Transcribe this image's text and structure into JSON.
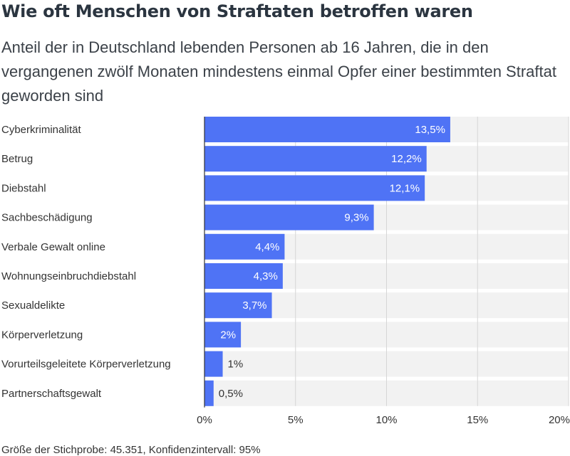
{
  "title": "Wie oft Menschen von Straftaten betroffen waren",
  "subtitle": "Anteil der in Deutschland lebenden Personen ab 16 Jahren, die in den vergangenen zwölf Monaten mindestens einmal Opfer einer bestimmten Straftat geworden sind",
  "footnote": "Größe der Stichprobe: 45.351, Konfidenzintervall: 95%",
  "colors": {
    "bar": "#4f73f5",
    "row_bg": "#f2f2f2",
    "grid": "#d6d6d6",
    "axis": "#333333",
    "inside_label": "#ffffff",
    "outside_label": "#333333"
  },
  "chart_data": {
    "type": "bar",
    "orientation": "horizontal",
    "categories": [
      "Cyberkriminalität",
      "Betrug",
      "Diebstahl",
      "Sachbeschädigung",
      "Verbale Gewalt online",
      "Wohnungseinbruchdiebstahl",
      "Sexualdelikte",
      "Körperverletzung",
      "Vorurteilsgeleitete Körperverletzung",
      "Partnerschaftsgewalt"
    ],
    "values": [
      13.5,
      12.2,
      12.1,
      9.3,
      4.4,
      4.3,
      3.7,
      2,
      1,
      0.5
    ],
    "value_labels": [
      "13,5%",
      "12,2%",
      "12,1%",
      "9,3%",
      "4,4%",
      "4,3%",
      "3,7%",
      "2%",
      "1%",
      "0,5%"
    ],
    "xlim": [
      0,
      20
    ],
    "xticks": [
      0,
      5,
      10,
      15,
      20
    ],
    "xtick_labels": [
      "0%",
      "5%",
      "10%",
      "15%",
      "20%"
    ],
    "grid": true,
    "legend": false
  }
}
